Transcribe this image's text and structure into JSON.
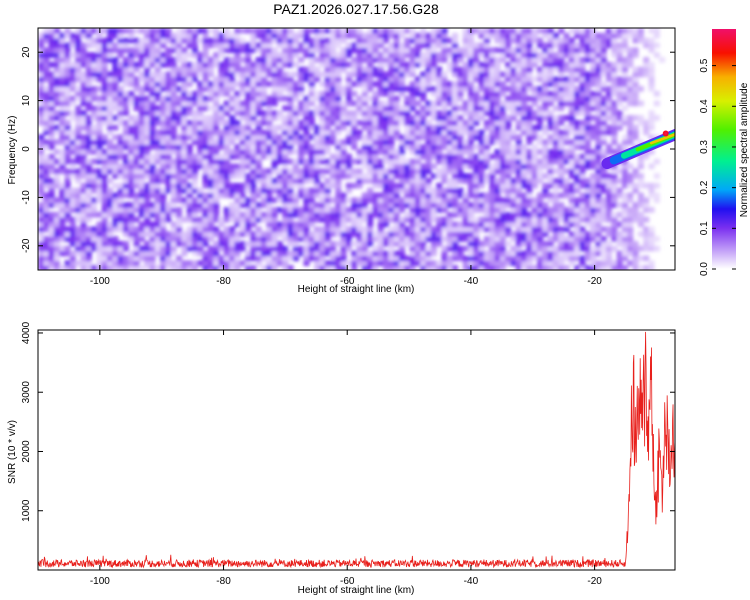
{
  "title": "PAZ1.2026.027.17.56.G28",
  "chart_data": [
    {
      "type": "heatmap",
      "xlabel": "Height of straight line (km)",
      "ylabel": "Frequency (Hz)",
      "xlim": [
        -110,
        -7
      ],
      "ylim": [
        -25,
        25
      ],
      "xticks": [
        -100,
        -80,
        -60,
        -40,
        -20
      ],
      "yticks": [
        -20,
        -10,
        0,
        10,
        20
      ],
      "colorbar": {
        "label": "Normalized spectral amplitude",
        "range": [
          0.0,
          0.59
        ],
        "ticks": [
          0.0,
          0.1,
          0.2,
          0.3,
          0.4,
          0.5
        ]
      },
      "feature": {
        "description_values": "peak signal near 0-4 Hz for heights above -18 km",
        "start_x": -18,
        "end_x": -7,
        "start_y": -3,
        "end_y": 3.5,
        "peak_amplitude": 0.55
      },
      "background_amplitude_range": [
        0.02,
        0.12
      ]
    },
    {
      "type": "line",
      "xlabel": "Height of straight line (km)",
      "ylabel": "SNR (10 * v/v)",
      "xlim": [
        -110,
        -7
      ],
      "ylim": [
        0,
        4050
      ],
      "xticks": [
        -100,
        -80,
        -60,
        -40,
        -20
      ],
      "yticks": [
        1000,
        2000,
        3000,
        4000
      ],
      "series": [
        {
          "name": "SNR",
          "color": "#e8201c",
          "baseline": 110,
          "noise_amplitude": 90,
          "keypoints": [
            [
              -110,
              110
            ],
            [
              -20,
              110
            ],
            [
              -16,
              150
            ],
            [
              -15,
              300
            ],
            [
              -14.5,
              900
            ],
            [
              -14.2,
              2400
            ],
            [
              -13.8,
              3300
            ],
            [
              -13.2,
              2200
            ],
            [
              -12.8,
              3400
            ],
            [
              -12.3,
              2500
            ],
            [
              -11.8,
              3800
            ],
            [
              -11.2,
              2600
            ],
            [
              -10.8,
              4050
            ],
            [
              -10.3,
              1000
            ],
            [
              -9.6,
              2100
            ],
            [
              -9.0,
              1500
            ],
            [
              -8.5,
              2900
            ],
            [
              -8.0,
              1900
            ],
            [
              -7.5,
              2400
            ],
            [
              -7,
              2300
            ]
          ]
        }
      ]
    }
  ]
}
